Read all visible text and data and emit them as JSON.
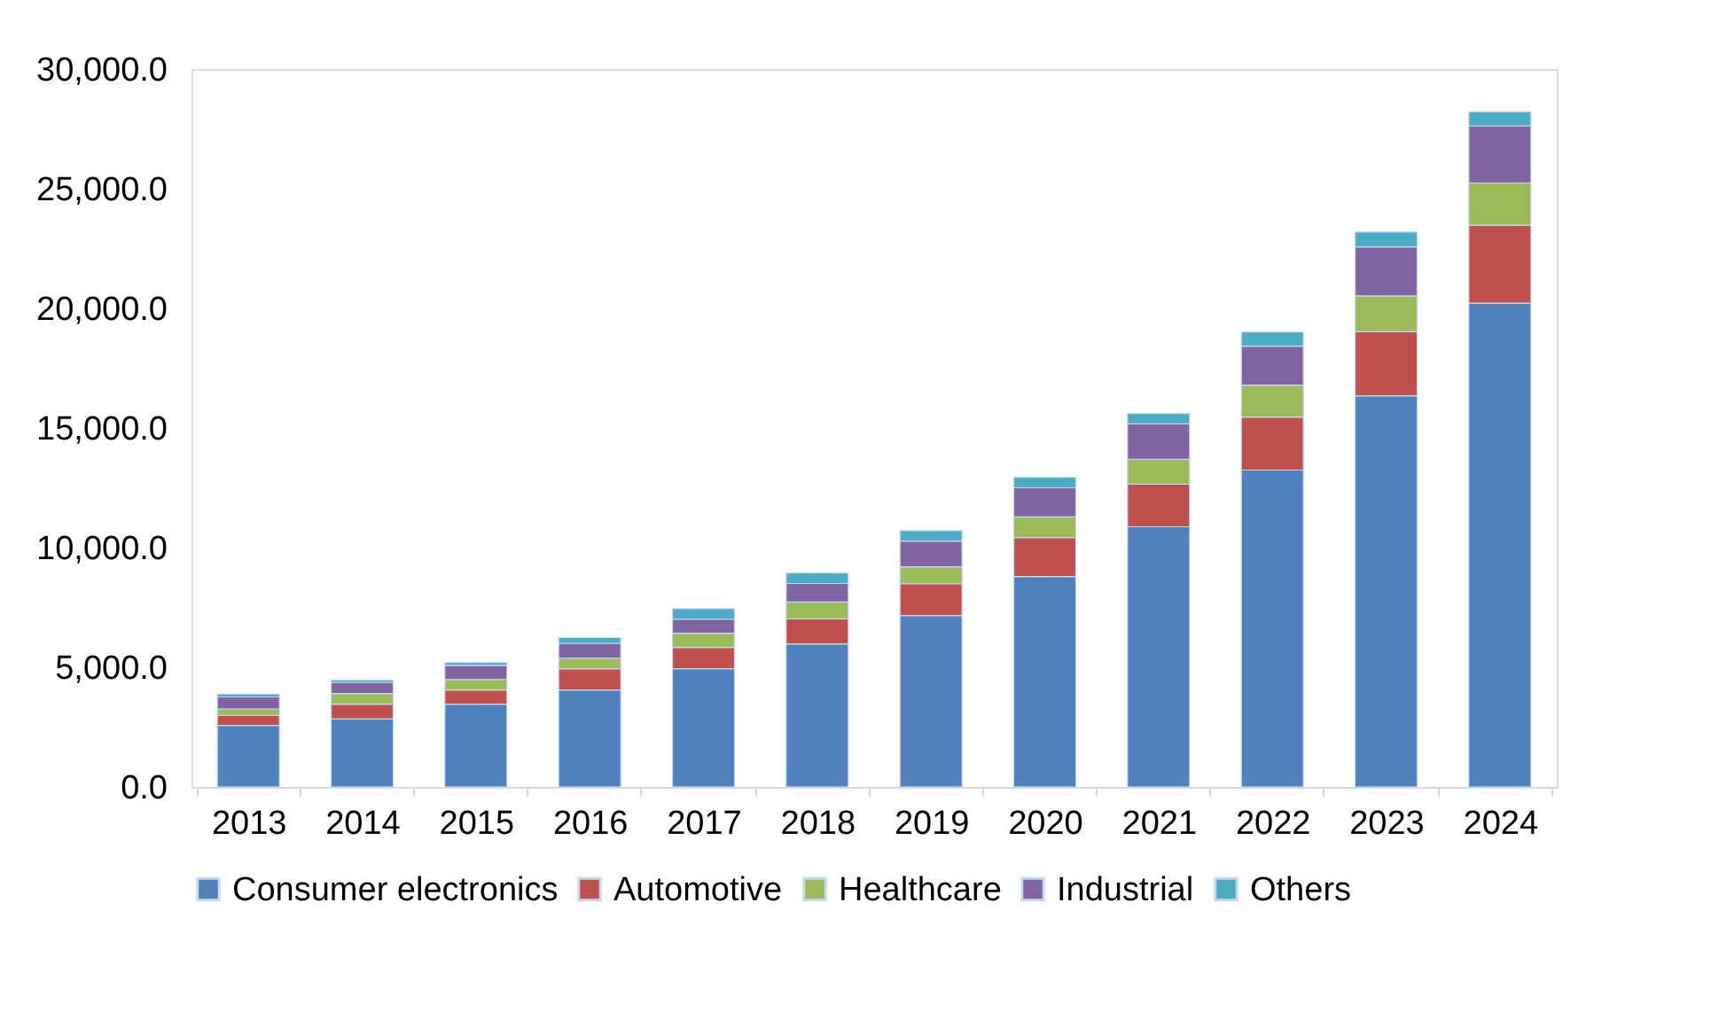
{
  "chart_data": {
    "type": "bar",
    "stacked": true,
    "categories": [
      "2013",
      "2014",
      "2015",
      "2016",
      "2017",
      "2018",
      "2019",
      "2020",
      "2021",
      "2022",
      "2023",
      "2024"
    ],
    "series": [
      {
        "name": "Consumer electronics",
        "color": "#4f81bd",
        "values": [
          2570,
          2840,
          3460,
          4050,
          4940,
          5980,
          7160,
          8790,
          10870,
          13240,
          16350,
          20220
        ]
      },
      {
        "name": "Automotive",
        "color": "#c0504d",
        "values": [
          420,
          620,
          590,
          890,
          890,
          1040,
          1330,
          1630,
          1780,
          2220,
          2670,
          3260
        ]
      },
      {
        "name": "Healthcare",
        "color": "#9bbb59",
        "values": [
          270,
          440,
          440,
          440,
          590,
          710,
          710,
          860,
          1040,
          1330,
          1500,
          1760
        ]
      },
      {
        "name": "Industrial",
        "color": "#8064a2",
        "values": [
          500,
          470,
          590,
          620,
          590,
          770,
          1070,
          1220,
          1480,
          1630,
          2050,
          2390
        ]
      },
      {
        "name": "Others",
        "color": "#4bacc6",
        "values": [
          120,
          100,
          120,
          240,
          440,
          440,
          440,
          440,
          440,
          590,
          620,
          590
        ]
      }
    ],
    "ylim": [
      0,
      30000
    ],
    "yticks": [
      {
        "value": 0,
        "label": "0.0"
      },
      {
        "value": 5000,
        "label": "5,000.0"
      },
      {
        "value": 10000,
        "label": "10,000.0"
      },
      {
        "value": 15000,
        "label": "15,000.0"
      },
      {
        "value": 20000,
        "label": "20,000.0"
      },
      {
        "value": 25000,
        "label": "25,000.0"
      },
      {
        "value": 30000,
        "label": "30,000.0"
      }
    ],
    "grid": false,
    "legend": "bottom"
  }
}
